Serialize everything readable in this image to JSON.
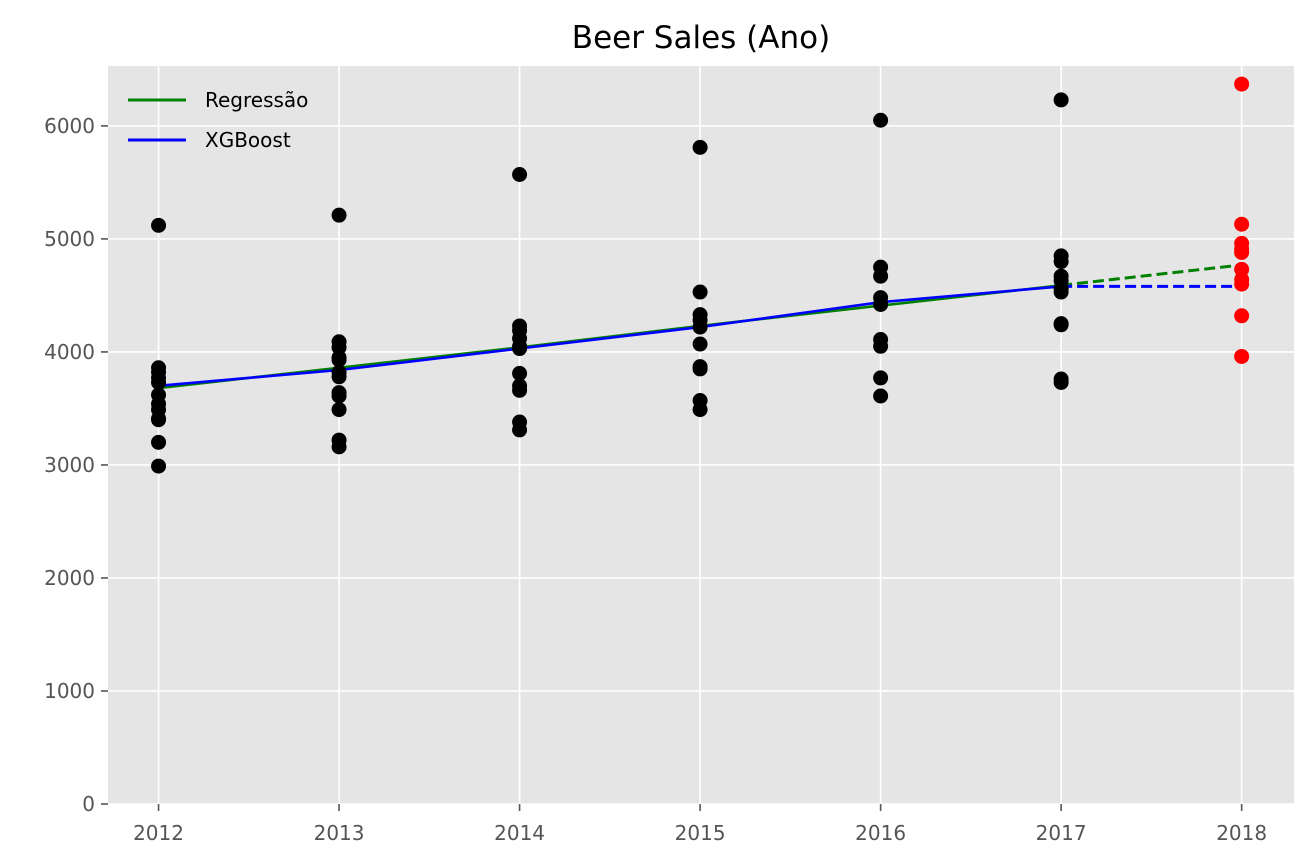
{
  "chart_data": {
    "type": "scatter",
    "title": "Beer Sales (Ano)",
    "xlabel": "",
    "ylabel": "",
    "x_ticks": [
      2012,
      2013,
      2014,
      2015,
      2016,
      2017,
      2018
    ],
    "y_ticks": [
      0,
      1000,
      2000,
      3000,
      4000,
      5000,
      6000
    ],
    "xlim": [
      2011.72,
      2018.29
    ],
    "ylim": [
      0,
      6530
    ],
    "grid": true,
    "legend_position": "top-left",
    "colors": {
      "background": "#e5e5e5",
      "grid": "#ffffff",
      "actual": "#000000",
      "forecast": "#ff0000",
      "regression": "#008000",
      "xgboost": "#0000ff"
    },
    "series": [
      {
        "kind": "scatter",
        "color": "#000000",
        "points": [
          [
            2012,
            5120
          ],
          [
            2012,
            3860
          ],
          [
            2012,
            3820
          ],
          [
            2012,
            3770
          ],
          [
            2012,
            3730
          ],
          [
            2012,
            3620
          ],
          [
            2012,
            3540
          ],
          [
            2012,
            3490
          ],
          [
            2012,
            3410
          ],
          [
            2012,
            3400
          ],
          [
            2012,
            3200
          ],
          [
            2012,
            2990
          ],
          [
            2013,
            5210
          ],
          [
            2013,
            4090
          ],
          [
            2013,
            4040
          ],
          [
            2013,
            3950
          ],
          [
            2013,
            3930
          ],
          [
            2013,
            3820
          ],
          [
            2013,
            3780
          ],
          [
            2013,
            3640
          ],
          [
            2013,
            3610
          ],
          [
            2013,
            3490
          ],
          [
            2013,
            3220
          ],
          [
            2013,
            3160
          ],
          [
            2014,
            5570
          ],
          [
            2014,
            4230
          ],
          [
            2014,
            4190
          ],
          [
            2014,
            4120
          ],
          [
            2014,
            4050
          ],
          [
            2014,
            4030
          ],
          [
            2014,
            3810
          ],
          [
            2014,
            3700
          ],
          [
            2014,
            3660
          ],
          [
            2014,
            3380
          ],
          [
            2014,
            3310
          ],
          [
            2015,
            5810
          ],
          [
            2015,
            4530
          ],
          [
            2015,
            4330
          ],
          [
            2015,
            4280
          ],
          [
            2015,
            4220
          ],
          [
            2015,
            4070
          ],
          [
            2015,
            3870
          ],
          [
            2015,
            3850
          ],
          [
            2015,
            3570
          ],
          [
            2015,
            3490
          ],
          [
            2016,
            6050
          ],
          [
            2016,
            4750
          ],
          [
            2016,
            4670
          ],
          [
            2016,
            4480
          ],
          [
            2016,
            4420
          ],
          [
            2016,
            4110
          ],
          [
            2016,
            4050
          ],
          [
            2016,
            3770
          ],
          [
            2016,
            3610
          ],
          [
            2017,
            6230
          ],
          [
            2017,
            4850
          ],
          [
            2017,
            4800
          ],
          [
            2017,
            4670
          ],
          [
            2017,
            4630
          ],
          [
            2017,
            4560
          ],
          [
            2017,
            4530
          ],
          [
            2017,
            4250
          ],
          [
            2017,
            4240
          ],
          [
            2017,
            3760
          ],
          [
            2017,
            3730
          ]
        ]
      },
      {
        "kind": "scatter",
        "color": "#ff0000",
        "points": [
          [
            2018,
            6370
          ],
          [
            2018,
            5130
          ],
          [
            2018,
            4960
          ],
          [
            2018,
            4910
          ],
          [
            2018,
            4880
          ],
          [
            2018,
            4730
          ],
          [
            2018,
            4640
          ],
          [
            2018,
            4600
          ],
          [
            2018,
            4320
          ],
          [
            2018,
            3960
          ]
        ]
      },
      {
        "kind": "line",
        "name": "Regressão",
        "color": "#008000",
        "style": "solid",
        "x": [
          2012,
          2013,
          2014,
          2015,
          2016,
          2017
        ],
        "values": [
          3680,
          3860,
          4040,
          4230,
          4410,
          4590
        ]
      },
      {
        "kind": "line",
        "color": "#008000",
        "style": "dashed",
        "x": [
          2017,
          2018
        ],
        "values": [
          4590,
          4770
        ]
      },
      {
        "kind": "line",
        "name": "XGBoost",
        "color": "#0000ff",
        "style": "solid",
        "x": [
          2012,
          2013,
          2014,
          2015,
          2016,
          2017
        ],
        "values": [
          3700,
          3840,
          4030,
          4220,
          4440,
          4580
        ]
      },
      {
        "kind": "line",
        "color": "#0000ff",
        "style": "dashed",
        "x": [
          2017,
          2018
        ],
        "values": [
          4580,
          4580
        ]
      }
    ],
    "legend": [
      {
        "label": "Regressão",
        "color": "#008000"
      },
      {
        "label": "XGBoost",
        "color": "#0000ff"
      }
    ]
  }
}
